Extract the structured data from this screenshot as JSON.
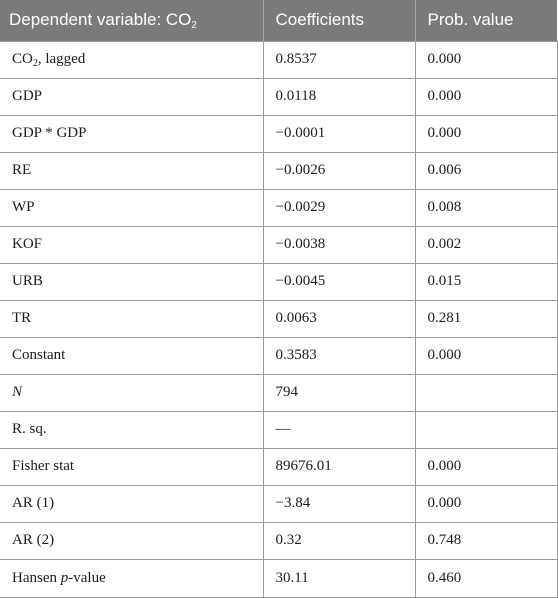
{
  "header": {
    "col1_prefix": "Dependent variable: CO",
    "col1_sub": "2",
    "col2": "Coefficients",
    "col3": "Prob. value"
  },
  "rows": [
    {
      "var_main": "CO",
      "var_sub": "2",
      "var_rest": ", lagged",
      "coef": "0.8537",
      "prob": "0.000"
    },
    {
      "var": "GDP",
      "coef": "0.0118",
      "prob": "0.000"
    },
    {
      "var": "GDP * GDP",
      "coef": "−0.0001",
      "prob": "0.000"
    },
    {
      "var": "RE",
      "coef": "−0.0026",
      "prob": "0.006"
    },
    {
      "var": "WP",
      "coef": "−0.0029",
      "prob": "0.008"
    },
    {
      "var": "KOF",
      "coef": "−0.0038",
      "prob": "0.002"
    },
    {
      "var": "URB",
      "coef": "−0.0045",
      "prob": "0.015"
    },
    {
      "var": "TR",
      "coef": "0.0063",
      "prob": "0.281"
    },
    {
      "var": "Constant",
      "coef": "0.3583",
      "prob": "0.000"
    },
    {
      "var": "N",
      "coef": "794",
      "prob": ""
    },
    {
      "var": "R. sq.",
      "coef": "—",
      "prob": ""
    },
    {
      "var": "Fisher stat",
      "coef": "89676.01",
      "prob": "0.000"
    },
    {
      "var": "AR (1)",
      "coef": "−3.84",
      "prob": "0.000"
    },
    {
      "var": "AR (2)",
      "coef": "0.32",
      "prob": "0.748"
    },
    {
      "var_main": "Hansen ",
      "var_italic": "p",
      "var_rest": "-value",
      "coef": "30.11",
      "prob": "0.460"
    }
  ]
}
